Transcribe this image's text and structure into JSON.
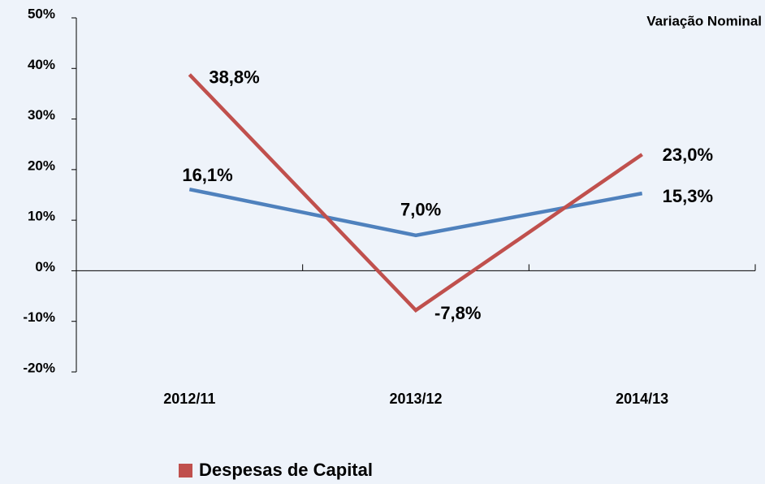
{
  "chart_data": {
    "type": "line",
    "annotation": "Variação Nominal",
    "categories": [
      "2012/11",
      "2013/12",
      "2014/13"
    ],
    "series": [
      {
        "color": "#4f81bd",
        "values": [
          16.1,
          7.0,
          15.3
        ],
        "value_labels": [
          "16,1%",
          "7,0%",
          "15,3%"
        ]
      },
      {
        "name": "Despesas de Capital",
        "color": "#c0504d",
        "values": [
          38.8,
          -7.8,
          23.0
        ],
        "value_labels": [
          "38,8%",
          "-7,8%",
          "23,0%"
        ]
      }
    ],
    "ylim": [
      -20,
      50
    ],
    "yticks": [
      {
        "value": -20,
        "label": "-20%"
      },
      {
        "value": -10,
        "label": "-10%"
      },
      {
        "value": 0,
        "label": "0%"
      },
      {
        "value": 10,
        "label": "10%"
      },
      {
        "value": 20,
        "label": "20%"
      },
      {
        "value": 30,
        "label": "30%"
      },
      {
        "value": 40,
        "label": "40%"
      },
      {
        "value": 50,
        "label": "50%"
      }
    ],
    "grid": false
  }
}
